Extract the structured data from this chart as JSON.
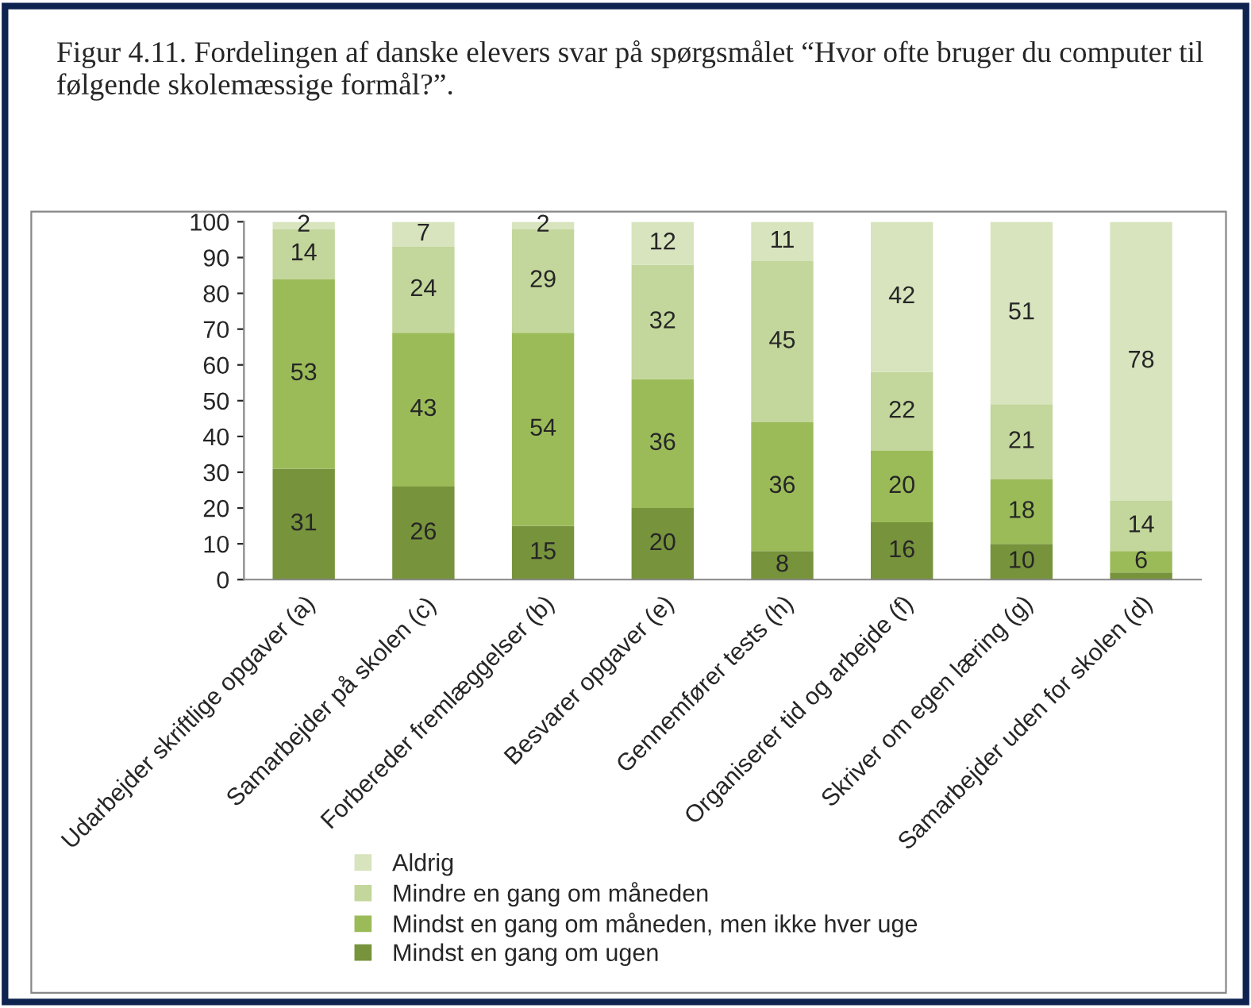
{
  "chart_data": {
    "type": "bar",
    "stacked": true,
    "title": "Figur 4.11. Fordelingen af danske elevers svar på spørgsmålet “Hvor ofte bruger du computer til følgende skolemæssige formål?”.",
    "categories": [
      "Udarbejder skriftlige opgaver (a)",
      "Samarbejder på skolen (c)",
      "Forbereder fremlæggelser (b)",
      "Besvarer opgaver (e)",
      "Gennemfører tests (h)",
      "Organiserer tid og arbejde (f)",
      "Skriver om egen læring (g)",
      "Samarbejder uden for skolen (d)"
    ],
    "series": [
      {
        "name": "Mindst en gang om ugen",
        "color": "#77933c",
        "values": [
          31,
          26,
          15,
          20,
          8,
          16,
          10,
          2
        ],
        "value_labels": [
          "31",
          "26",
          "15",
          "20",
          "8",
          "16",
          "10",
          null
        ]
      },
      {
        "name": "Mindst en gang om måneden, men ikke hver uge",
        "color": "#9bbb59",
        "values": [
          53,
          43,
          54,
          36,
          36,
          20,
          18,
          6
        ],
        "value_labels": [
          "53",
          "43",
          "54",
          "36",
          "36",
          "20",
          "18",
          "6"
        ]
      },
      {
        "name": "Mindre en gang om måneden",
        "color": "#c3d69b",
        "values": [
          14,
          24,
          29,
          32,
          45,
          22,
          21,
          14
        ],
        "value_labels": [
          "14",
          "24",
          "29",
          "32",
          "45",
          "22",
          "21",
          "14"
        ]
      },
      {
        "name": "Aldrig",
        "color": "#d7e4bd",
        "values": [
          2,
          7,
          2,
          12,
          11,
          42,
          51,
          78
        ],
        "value_labels": [
          "2",
          "7",
          "2",
          "12",
          "11",
          "42",
          "51",
          "78"
        ]
      }
    ],
    "ylim": [
      0,
      100
    ],
    "yticks": [
      0,
      10,
      20,
      30,
      40,
      50,
      60,
      70,
      80,
      90,
      100
    ],
    "grid": false,
    "legend": "bottom"
  }
}
